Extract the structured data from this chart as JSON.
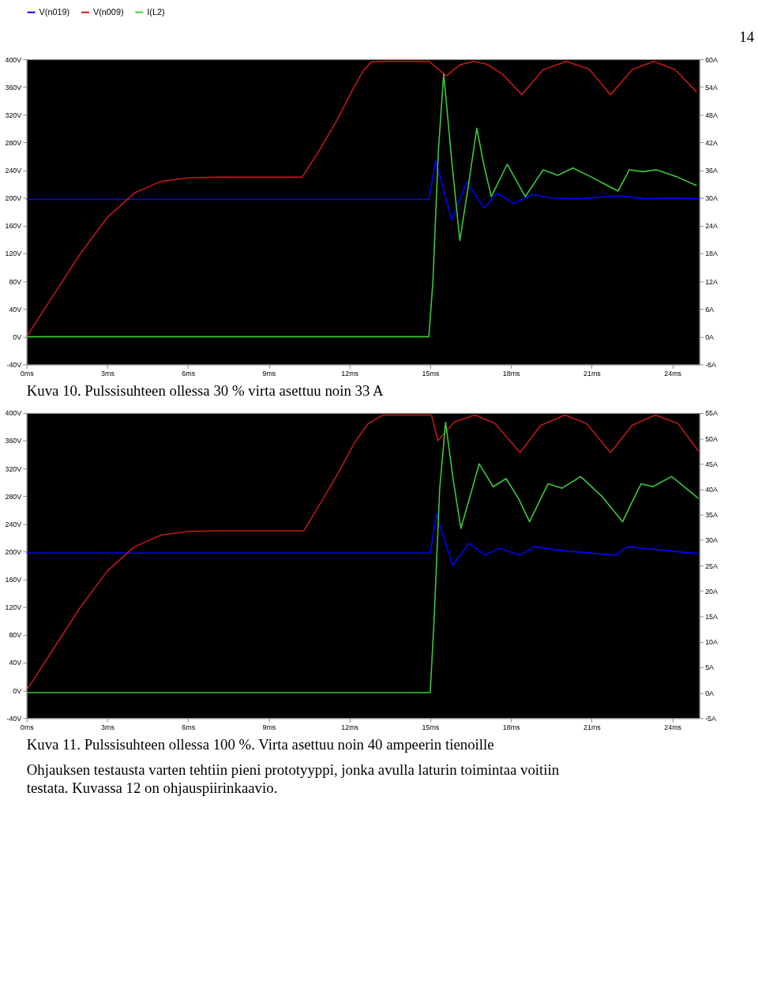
{
  "chart_data": [
    {
      "type": "line",
      "annotations": [
        "14",
        "Kuva 10. Pulssisuhteen ollessa 30 % virta asettuu noin 33 A"
      ],
      "legend": "top",
      "grid": false,
      "xlim": [
        0,
        25
      ],
      "xticks": [
        {
          "value": 0,
          "label": "0ms"
        },
        {
          "value": 3,
          "label": "3ms"
        },
        {
          "value": 6,
          "label": "6ms"
        },
        {
          "value": 9,
          "label": "9ms"
        },
        {
          "value": 12,
          "label": "12ms"
        },
        {
          "value": 15,
          "label": "15ms"
        },
        {
          "value": 18,
          "label": "18ms"
        },
        {
          "value": 21,
          "label": "21ms"
        },
        {
          "value": 24,
          "label": "24ms"
        }
      ],
      "ylim": [
        -40,
        400
      ],
      "yticks": [
        {
          "value": -40,
          "label": "-40V"
        },
        {
          "value": 0,
          "label": "0V"
        },
        {
          "value": 40,
          "label": "40V"
        },
        {
          "value": 80,
          "label": "80V"
        },
        {
          "value": 120,
          "label": "120V"
        },
        {
          "value": 160,
          "label": "160V"
        },
        {
          "value": 200,
          "label": "200V"
        },
        {
          "value": 240,
          "label": "240V"
        },
        {
          "value": 280,
          "label": "280V"
        },
        {
          "value": 320,
          "label": "320V"
        },
        {
          "value": 360,
          "label": "360V"
        },
        {
          "value": 400,
          "label": "400V"
        }
      ],
      "y2lim": [
        -6,
        60
      ],
      "y2ticks": [
        {
          "value": -6,
          "label": "-6A"
        },
        {
          "value": 0,
          "label": "0A"
        },
        {
          "value": 6,
          "label": "6A"
        },
        {
          "value": 12,
          "label": "12A"
        },
        {
          "value": 18,
          "label": "18A"
        },
        {
          "value": 24,
          "label": "24A"
        },
        {
          "value": 30,
          "label": "30A"
        },
        {
          "value": 36,
          "label": "36A"
        },
        {
          "value": 42,
          "label": "42A"
        },
        {
          "value": 48,
          "label": "48A"
        },
        {
          "value": 54,
          "label": "54A"
        },
        {
          "value": 60,
          "label": "60A"
        }
      ],
      "series": [
        {
          "name": "V(n019)",
          "color": "#0000ff",
          "x": [
            0,
            14.95,
            15.2,
            15.8,
            16.35,
            17.0,
            17.5,
            18.1,
            18.8,
            19.5,
            20.5,
            22,
            23,
            24,
            25
          ],
          "values": [
            198,
            198,
            254,
            168,
            223,
            186,
            207,
            192,
            205,
            200,
            199,
            203,
            199,
            200,
            199
          ]
        },
        {
          "name": "V(n009)",
          "color": "#c01818",
          "x": [
            0,
            1,
            2,
            3,
            4,
            5,
            6,
            7,
            10.24,
            10.9,
            11.5,
            12.1,
            12.5,
            12.8,
            13.2,
            14.95,
            15.6,
            16.1,
            16.6,
            17.1,
            17.7,
            18.4,
            19.2,
            20.05,
            20.9,
            21.7,
            22.5,
            23.3,
            24.1,
            24.9
          ],
          "values": [
            0,
            60,
            120,
            172,
            207,
            224,
            229,
            230,
            230,
            270,
            310,
            355,
            383,
            396,
            397,
            397,
            376,
            392,
            397,
            393,
            378,
            349,
            385,
            397,
            386,
            349,
            385,
            397,
            385,
            353
          ]
        },
        {
          "name": "I(L2)",
          "color": "#3cc83c",
          "axis": "y2",
          "x": [
            0,
            14.95,
            15.1,
            15.3,
            15.5,
            15.8,
            16.1,
            16.4,
            16.73,
            17.0,
            17.27,
            17.86,
            18.53,
            19.2,
            19.74,
            20.3,
            21.0,
            21.98,
            22.4,
            22.9,
            23.4,
            24.2,
            24.9
          ],
          "values": [
            0,
            0,
            12,
            40,
            56.8,
            38,
            20.8,
            32,
            45.1,
            37,
            30.3,
            37.3,
            30.3,
            36.1,
            34.9,
            36.5,
            34.5,
            31.5,
            36.1,
            35.7,
            36.1,
            34.5,
            32.7
          ]
        }
      ]
    },
    {
      "type": "line",
      "annotations": [
        "Kuva 11. Pulssisuhteen ollessa 100 %. Virta asettuu noin 40 ampeerin tienoille",
        "Ohjauksen testausta varten tehtiin pieni prototyyppi, jonka avulla laturin toimintaa voitiin testata. Kuvassa 12 on ohjauspiirinkaavio."
      ],
      "legend": "top",
      "grid": false,
      "xlim": [
        0,
        25
      ],
      "xticks": [
        {
          "value": 0,
          "label": "0ms"
        },
        {
          "value": 3,
          "label": "3ms"
        },
        {
          "value": 6,
          "label": "6ms"
        },
        {
          "value": 9,
          "label": "9ms"
        },
        {
          "value": 12,
          "label": "12ms"
        },
        {
          "value": 15,
          "label": "15ms"
        },
        {
          "value": 18,
          "label": "18ms"
        },
        {
          "value": 21,
          "label": "21ms"
        },
        {
          "value": 24,
          "label": "24ms"
        }
      ],
      "ylim": [
        -40,
        400
      ],
      "yticks": [
        {
          "value": -40,
          "label": "-40V"
        },
        {
          "value": 0,
          "label": "0V"
        },
        {
          "value": 40,
          "label": "40V"
        },
        {
          "value": 80,
          "label": "80V"
        },
        {
          "value": 120,
          "label": "120V"
        },
        {
          "value": 160,
          "label": "160V"
        },
        {
          "value": 200,
          "label": "200V"
        },
        {
          "value": 240,
          "label": "240V"
        },
        {
          "value": 280,
          "label": "280V"
        },
        {
          "value": 320,
          "label": "320V"
        },
        {
          "value": 360,
          "label": "360V"
        },
        {
          "value": 400,
          "label": "400V"
        }
      ],
      "y2lim": [
        -5,
        55
      ],
      "y2ticks": [
        {
          "value": -5,
          "label": "-5A"
        },
        {
          "value": 0,
          "label": "0A"
        },
        {
          "value": 5,
          "label": "5A"
        },
        {
          "value": 10,
          "label": "10A"
        },
        {
          "value": 15,
          "label": "15A"
        },
        {
          "value": 20,
          "label": "20A"
        },
        {
          "value": 25,
          "label": "25A"
        },
        {
          "value": 30,
          "label": "30A"
        },
        {
          "value": 35,
          "label": "35A"
        },
        {
          "value": 40,
          "label": "40A"
        },
        {
          "value": 45,
          "label": "45A"
        },
        {
          "value": 50,
          "label": "50A"
        },
        {
          "value": 55,
          "label": "55A"
        }
      ],
      "series": [
        {
          "name": "V(n019)",
          "color": "#0000ff",
          "x": [
            0,
            15.0,
            15.23,
            15.83,
            16.44,
            17.04,
            17.56,
            18.34,
            18.86,
            20.0,
            21.9,
            22.3,
            23.4,
            24.97
          ],
          "values": [
            198,
            198,
            255,
            180,
            212,
            195,
            205,
            195,
            207,
            201,
            195,
            207,
            203,
            197
          ]
        },
        {
          "name": "V(n009)",
          "color": "#c01818",
          "x": [
            0,
            1,
            2,
            3,
            4,
            5,
            6,
            7,
            10.3,
            11,
            11.6,
            12.2,
            12.7,
            13.24,
            15.05,
            15.28,
            15.9,
            16.66,
            17.4,
            18.34,
            19.1,
            20.0,
            20.8,
            21.7,
            22.5,
            23.36,
            24.2,
            24.97
          ],
          "values": [
            0,
            60,
            120,
            172,
            207,
            224,
            229,
            230,
            230,
            275,
            315,
            358,
            385,
            397,
            397,
            360,
            387,
            397,
            385,
            343,
            382,
            397,
            385,
            343,
            382,
            397,
            385,
            345
          ]
        },
        {
          "name": "I(L2)",
          "color": "#3cc83c",
          "axis": "y2",
          "x": [
            0,
            15.0,
            15.15,
            15.35,
            15.57,
            15.85,
            16.14,
            16.5,
            16.82,
            17.34,
            17.82,
            18.3,
            18.69,
            19.0,
            19.38,
            19.9,
            20.59,
            21.4,
            22.15,
            22.5,
            22.84,
            23.27,
            23.97,
            24.97
          ],
          "values": [
            0,
            0,
            15,
            40,
            53.2,
            42,
            32.3,
            39,
            45.0,
            40.5,
            42.1,
            38,
            33.6,
            37,
            41.1,
            40.2,
            42.5,
            38.5,
            33.6,
            37.5,
            41.1,
            40.5,
            42.5,
            38.2
          ]
        }
      ]
    }
  ]
}
